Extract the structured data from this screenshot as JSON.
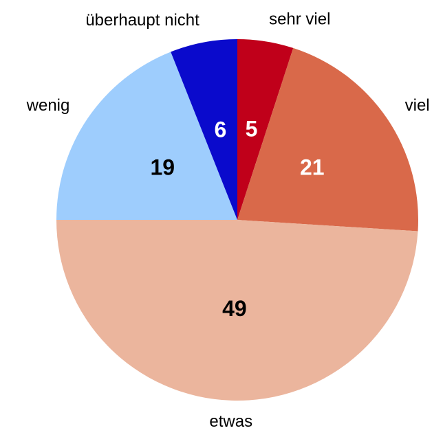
{
  "chart_data": {
    "type": "pie",
    "categories": [
      "sehr viel",
      "viel",
      "etwas",
      "wenig",
      "überhaupt nicht"
    ],
    "values": [
      5,
      21,
      49,
      19,
      6
    ],
    "colors": [
      "#c0001a",
      "#d9694a",
      "#ebb59d",
      "#9ecdfd",
      "#0a0acc"
    ],
    "start_angle": 0,
    "direction": "clockwise"
  }
}
